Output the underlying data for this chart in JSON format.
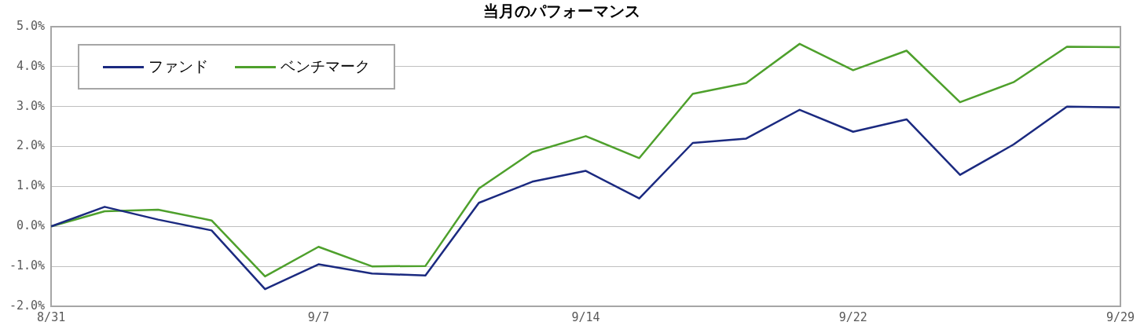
{
  "chart_data": {
    "type": "line",
    "title": "当月のパフォーマンス",
    "categories": [
      "8/31",
      null,
      null,
      null,
      null,
      "9/7",
      null,
      null,
      null,
      null,
      "9/14",
      null,
      null,
      null,
      null,
      "9/22",
      null,
      null,
      null,
      null,
      "9/29"
    ],
    "series": [
      {
        "name": "ファンド",
        "color": "#1b2a80",
        "values": [
          0,
          0.49,
          0.17,
          -0.1,
          -1.57,
          -0.95,
          -1.18,
          -1.23,
          0.59,
          1.12,
          1.39,
          0.7,
          2.09,
          2.2,
          2.92,
          2.37,
          2.68,
          1.29,
          2.05,
          3.0,
          2.98
        ]
      },
      {
        "name": "ベンチマーク",
        "color": "#4ea02c",
        "values": [
          0,
          0.38,
          0.42,
          0.15,
          -1.25,
          -0.51,
          -1.0,
          -0.99,
          0.95,
          1.86,
          2.26,
          1.71,
          3.32,
          3.59,
          4.57,
          3.91,
          4.4,
          3.11,
          3.61,
          4.5,
          4.49
        ]
      }
    ],
    "ylim": [
      -2,
      5
    ],
    "yticks": [
      {
        "value": -2,
        "label": "-2.0%"
      },
      {
        "value": -1,
        "label": "-1.0%"
      },
      {
        "value": 0,
        "label": "0.0%"
      },
      {
        "value": 1,
        "label": "1.0%"
      },
      {
        "value": 2,
        "label": "2.0%"
      },
      {
        "value": 3,
        "label": "3.0%"
      },
      {
        "value": 4,
        "label": "4.0%"
      },
      {
        "value": 5,
        "label": "5.0%"
      }
    ],
    "grid": "y",
    "legend": "top left",
    "marker": "none",
    "line_style": "solid"
  }
}
